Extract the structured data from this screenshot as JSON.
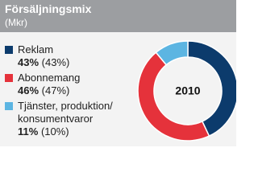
{
  "chart_data": {
    "type": "donut",
    "title": "Försäljningsmix",
    "subtitle": "(Mkr)",
    "center_label": "2010",
    "categories": [
      "Reklam",
      "Abonnemang",
      "Tjänster, produktion/ konsumentvaror"
    ],
    "values": [
      43,
      46,
      11
    ],
    "value_labels": [
      "43%",
      "46%",
      "11%"
    ],
    "previous_values": [
      43,
      47,
      10
    ],
    "previous_value_labels": [
      "(43%)",
      "(47%)",
      "(10%)"
    ],
    "colors": [
      "#0c3b6c",
      "#e5323b",
      "#5cb5e2"
    ]
  }
}
